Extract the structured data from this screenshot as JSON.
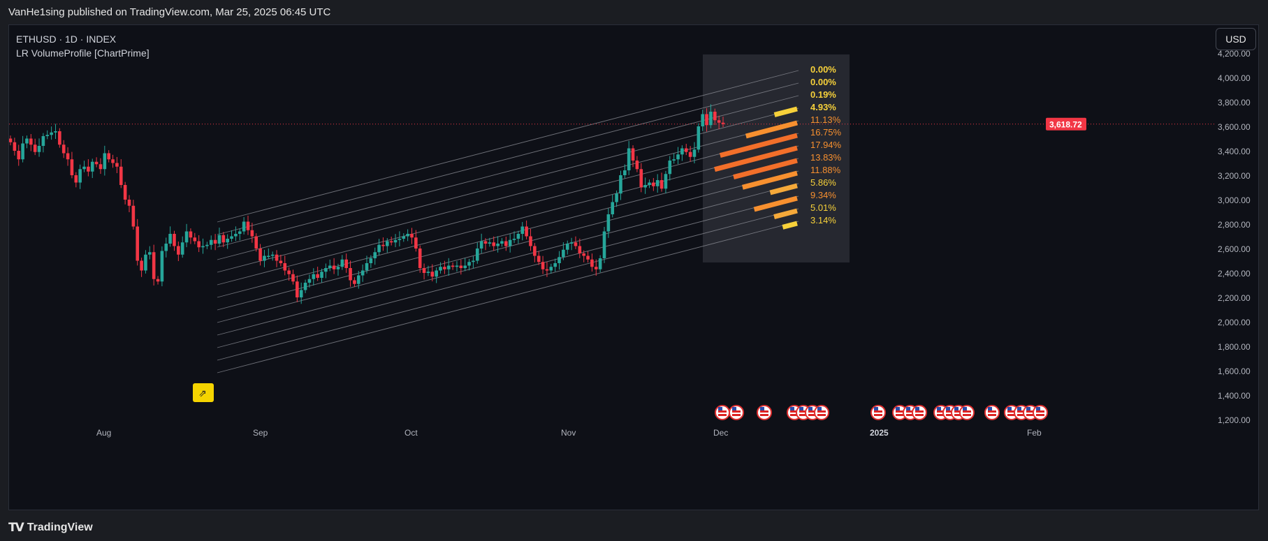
{
  "header": {
    "published": "VanHe1sing published on TradingView.com, Mar 25, 2025 06:45 UTC"
  },
  "chart_header": {
    "symbol_line": "ETHUSD · 1D · INDEX",
    "indicator": "LR VolumeProfile [ChartPrime]"
  },
  "currency_button": "USD",
  "footer": {
    "brand": "TradingView",
    "logo": "tradingview-logo-icon"
  },
  "colors": {
    "up": "#26a69a",
    "down": "#f23645",
    "profile_yellow": "#f7d13a",
    "profile_orange": "#f7902f",
    "profile_deep": "#f26f2a",
    "last_price_bg": "#f23645"
  },
  "chart_data": {
    "type": "candlestick",
    "title": "ETHUSD · 1D · INDEX",
    "x_tick_labels": [
      "Aug",
      "Sep",
      "Oct",
      "Nov",
      "Dec",
      "2025",
      "Feb"
    ],
    "y_tick_labels": [
      "4,200.00",
      "4,000.00",
      "3,800.00",
      "3,600.00",
      "3,400.00",
      "3,200.00",
      "3,000.00",
      "2,800.00",
      "2,600.00",
      "2,400.00",
      "2,200.00",
      "2,000.00",
      "1,800.00",
      "1,600.00",
      "1,400.00",
      "1,200.00"
    ],
    "ylim": [
      1160,
      4380
    ],
    "y_scale": "linear",
    "grid": false,
    "last_price": 3618.72,
    "last_price_label": "3,618.72",
    "candle_approximate_closes": [
      3470,
      3400,
      3330,
      3460,
      3500,
      3450,
      3390,
      3440,
      3520,
      3530,
      3550,
      3560,
      3450,
      3380,
      3330,
      3200,
      3140,
      3250,
      3270,
      3230,
      3310,
      3290,
      3250,
      3380,
      3330,
      3300,
      3270,
      3120,
      3000,
      2950,
      2780,
      2500,
      2420,
      2550,
      2570,
      2350,
      2330,
      2580,
      2640,
      2720,
      2620,
      2550,
      2650,
      2740,
      2690,
      2660,
      2610,
      2620,
      2630,
      2670,
      2640,
      2710,
      2650,
      2680,
      2700,
      2720,
      2740,
      2820,
      2750,
      2700,
      2600,
      2500,
      2540,
      2540,
      2550,
      2500,
      2480,
      2420,
      2390,
      2330,
      2200,
      2260,
      2320,
      2350,
      2390,
      2360,
      2410,
      2440,
      2460,
      2430,
      2450,
      2510,
      2440,
      2340,
      2310,
      2380,
      2420,
      2480,
      2520,
      2570,
      2630,
      2620,
      2660,
      2650,
      2670,
      2680,
      2700,
      2720,
      2690,
      2600,
      2440,
      2400,
      2410,
      2370,
      2420,
      2450,
      2430,
      2460,
      2450,
      2460,
      2440,
      2460,
      2490,
      2500,
      2600,
      2660,
      2640,
      2650,
      2620,
      2640,
      2660,
      2620,
      2670,
      2680,
      2720,
      2780,
      2700,
      2620,
      2540,
      2490,
      2430,
      2420,
      2450,
      2480,
      2530,
      2590,
      2640,
      2650,
      2620,
      2560,
      2540,
      2510,
      2450,
      2430,
      2520,
      2740,
      2880,
      2980,
      3050,
      3200,
      3240,
      3420,
      3320,
      3250,
      3100,
      3120,
      3140,
      3110,
      3160,
      3090,
      3210,
      3320,
      3330,
      3370,
      3420,
      3390,
      3350,
      3410,
      3600,
      3700,
      3610,
      3720,
      3650,
      3630,
      3618.72
    ]
  },
  "profile": {
    "levels": [
      {
        "label": "0.00%",
        "value": 0.0
      },
      {
        "label": "0.00%",
        "value": 0.0
      },
      {
        "label": "0.19%",
        "value": 0.19
      },
      {
        "label": "4.93%",
        "value": 4.93
      },
      {
        "label": "11.13%",
        "value": 11.13
      },
      {
        "label": "16.75%",
        "value": 16.75
      },
      {
        "label": "17.94%",
        "value": 17.94
      },
      {
        "label": "13.83%",
        "value": 13.83
      },
      {
        "label": "11.88%",
        "value": 11.88
      },
      {
        "label": "5.86%",
        "value": 5.86
      },
      {
        "label": "9.34%",
        "value": 9.34
      },
      {
        "label": "5.01%",
        "value": 5.01
      },
      {
        "label": "3.14%",
        "value": 3.14
      }
    ]
  },
  "event_markers": {
    "icon": "us-flag-icon",
    "count": 27
  },
  "drawing_tool_badge": {
    "icon": "trend-arrow-icon"
  }
}
